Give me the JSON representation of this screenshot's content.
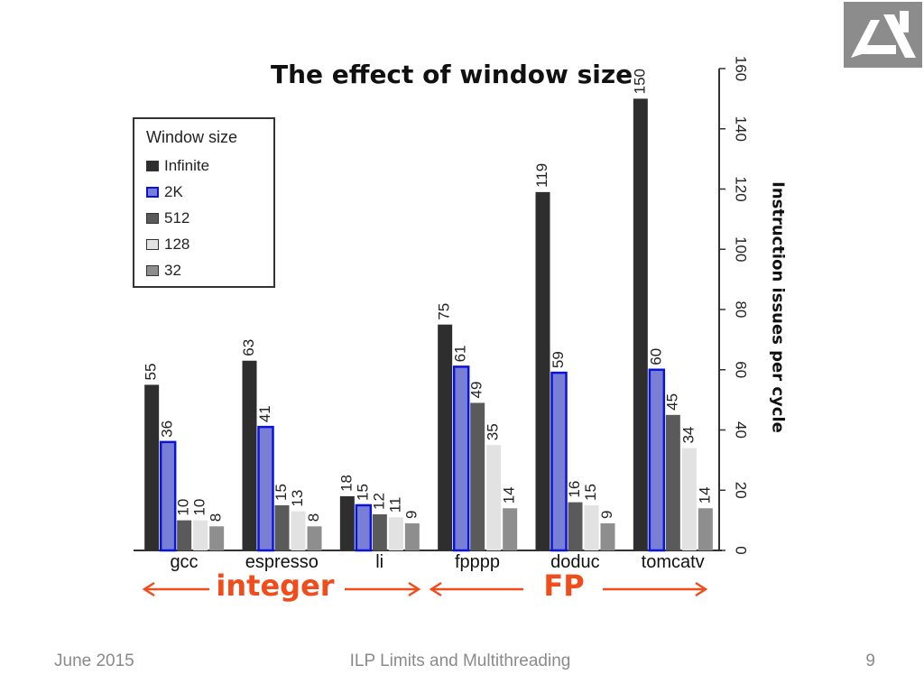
{
  "slide": {
    "title": "The effect of window size",
    "footer_left": "June 2015",
    "footer_center": "ILP Limits and Multithreading",
    "page_number": "9"
  },
  "annotations": {
    "integer_label": "integer",
    "fp_label": "FP",
    "arrow_color": "#f04c1c"
  },
  "logo": {
    "icon": "logo-icon"
  },
  "chart_data": {
    "type": "bar",
    "title": "The effect of window size",
    "ylabel": "Instruction issues per cycle",
    "xlabel": "",
    "ylim": [
      0,
      160
    ],
    "yticks": [
      0,
      20,
      40,
      60,
      80,
      100,
      120,
      140,
      160
    ],
    "y_axis_side": "right",
    "legend_title": "Window size",
    "legend_position": "top-left",
    "grid": false,
    "categories": [
      "gcc",
      "espresso",
      "li",
      "fpppp",
      "doduc",
      "tomcatv"
    ],
    "series": [
      {
        "name": "Infinite",
        "values": [
          55,
          63,
          18,
          75,
          119,
          150
        ],
        "color": "#2e2e2e"
      },
      {
        "name": "2K",
        "values": [
          36,
          41,
          15,
          61,
          59,
          60
        ],
        "color": "#7a7fd6",
        "border": "#0a14d8"
      },
      {
        "name": "512",
        "values": [
          10,
          15,
          12,
          49,
          16,
          45
        ],
        "color": "#5a5a5a"
      },
      {
        "name": "128",
        "values": [
          10,
          13,
          11,
          35,
          15,
          34
        ],
        "color": "#e2e2e2"
      },
      {
        "name": "32",
        "values": [
          8,
          8,
          9,
          14,
          9,
          14
        ],
        "color": "#8e8e8e"
      }
    ]
  }
}
